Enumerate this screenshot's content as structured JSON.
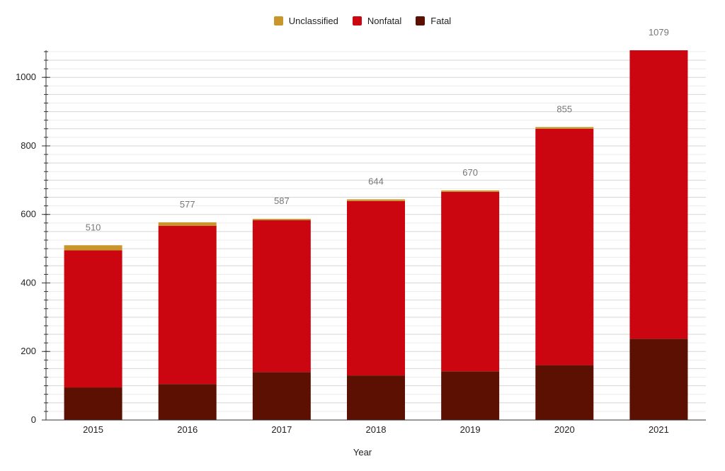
{
  "chart_data": {
    "type": "bar",
    "stacked": true,
    "categories": [
      "2015",
      "2016",
      "2017",
      "2018",
      "2019",
      "2020",
      "2021"
    ],
    "series": [
      {
        "name": "Fatal",
        "color": "#5c1002",
        "values": [
          95,
          105,
          140,
          130,
          142,
          160,
          237
        ]
      },
      {
        "name": "Nonfatal",
        "color": "#cc0610",
        "values": [
          400,
          462,
          443,
          509,
          524,
          690,
          842
        ]
      },
      {
        "name": "Unclassified",
        "color": "#c8962a",
        "values": [
          15,
          10,
          4,
          5,
          4,
          5,
          0
        ]
      }
    ],
    "totals": [
      510,
      577,
      587,
      644,
      670,
      855,
      1079
    ],
    "legend": [
      "Unclassified",
      "Nonfatal",
      "Fatal"
    ],
    "legend_position": "top-center",
    "xlabel": "Year",
    "ylabel": "",
    "ylim": [
      0,
      1079
    ],
    "y_ticks": [
      0,
      200,
      400,
      600,
      800,
      1000
    ],
    "grid": true
  }
}
